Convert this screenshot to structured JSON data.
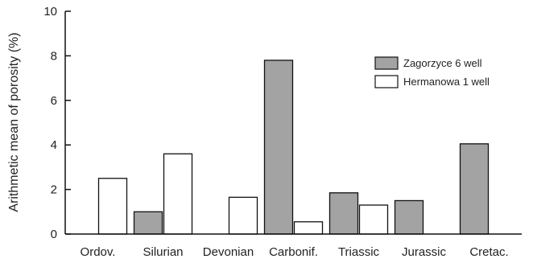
{
  "chart_data": {
    "type": "bar",
    "categories": [
      "Ordov.",
      "Silurian",
      "Devonian",
      "Carbonif.",
      "Triassic",
      "Jurassic",
      "Cretac."
    ],
    "series": [
      {
        "name": "Zagorzyce 6 well",
        "values": [
          null,
          1.0,
          null,
          7.8,
          1.85,
          1.5,
          4.05
        ],
        "color": "#a3a3a3"
      },
      {
        "name": "Hermanowa 1 well",
        "values": [
          2.5,
          3.6,
          1.65,
          0.55,
          1.3,
          null,
          null
        ],
        "color": "#ffffff"
      }
    ],
    "title": "",
    "xlabel": "",
    "ylabel": "Arithmetic mean of porosity (%)",
    "ylim": [
      0,
      10
    ],
    "yticks": [
      "0",
      "2",
      "4",
      "6",
      "8",
      "10"
    ],
    "grid": false,
    "legend_position": "top-right"
  }
}
